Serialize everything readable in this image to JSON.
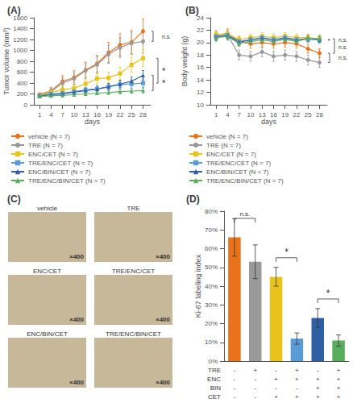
{
  "chart_data": [
    {
      "type": "line",
      "title": "(A)",
      "x_label": "days",
      "y_label": "Tumor volume (mm³)",
      "xlim": [
        -0.5,
        30
      ],
      "xticks": [
        1,
        4,
        7,
        10,
        13,
        16,
        19,
        22,
        25,
        28
      ],
      "ylim": [
        0,
        1600
      ],
      "yticks": [
        0,
        200,
        400,
        600,
        800,
        1000,
        1200,
        1400,
        1600
      ],
      "grid": false,
      "legend": "bottom",
      "x": [
        1,
        4,
        7,
        10,
        13,
        16,
        19,
        22,
        25,
        28
      ],
      "series": [
        {
          "name": "vehicle (N = 7)",
          "color": "#E8731A",
          "marker": "circle",
          "values": [
            190,
            255,
            430,
            500,
            640,
            755,
            960,
            1100,
            1150,
            1350
          ],
          "errors": [
            30,
            65,
            105,
            125,
            145,
            155,
            185,
            205,
            215,
            225
          ]
        },
        {
          "name": "TRE (N = 7)",
          "color": "#999999",
          "marker": "circle",
          "values": [
            178,
            245,
            400,
            480,
            625,
            735,
            930,
            1050,
            1130,
            1165
          ],
          "errors": [
            28,
            58,
            95,
            115,
            135,
            145,
            165,
            185,
            205,
            215
          ]
        },
        {
          "name": "ENC/CET (N = 7)",
          "color": "#E8C41A",
          "marker": "rect",
          "values": [
            175,
            225,
            275,
            305,
            385,
            480,
            495,
            575,
            735,
            855
          ],
          "errors": [
            28,
            48,
            65,
            75,
            85,
            95,
            100,
            115,
            135,
            155
          ]
        },
        {
          "name": "TRE/ENC/CET (N = 7)",
          "color": "#5B9BD5",
          "marker": "rect",
          "values": [
            165,
            198,
            212,
            242,
            272,
            292,
            332,
            372,
            382,
            398
          ],
          "errors": [
            22,
            32,
            38,
            45,
            48,
            55,
            58,
            68,
            75,
            80
          ]
        },
        {
          "name": "ENC/BIN/CET (N = 7)",
          "color": "#2E5FA3",
          "marker": "triangle",
          "values": [
            162,
            188,
            202,
            232,
            262,
            288,
            332,
            382,
            432,
            542
          ],
          "errors": [
            22,
            30,
            35,
            42,
            45,
            52,
            58,
            68,
            78,
            88
          ]
        },
        {
          "name": "TRE/ENC/BIN/CET (N = 7)",
          "color": "#5BAD5E",
          "marker": "triangle",
          "values": [
            155,
            165,
            175,
            185,
            200,
            215,
            225,
            242,
            252,
            262
          ],
          "errors": [
            18,
            22,
            25,
            28,
            30,
            32,
            35,
            38,
            42,
            45
          ]
        }
      ],
      "annotations": [
        {
          "text": "n.s.",
          "series": [
            "vehicle (N = 7)",
            "TRE (N = 7)"
          ]
        },
        {
          "text": "*",
          "series": [
            "ENC/CET (N = 7)",
            "TRE/ENC/CET (N = 7)"
          ]
        },
        {
          "text": "*",
          "series": [
            "ENC/BIN/CET (N = 7)",
            "TRE/ENC/BIN/CET (N = 7)"
          ]
        }
      ]
    },
    {
      "type": "line",
      "title": "(B)",
      "x_label": "days",
      "y_label": "Body weight (g)",
      "xlim": [
        -0.5,
        30
      ],
      "xticks": [
        1,
        4,
        7,
        10,
        13,
        16,
        19,
        22,
        25,
        28
      ],
      "ylim": [
        10,
        24
      ],
      "yticks": [
        10,
        12,
        14,
        16,
        18,
        20,
        22,
        24
      ],
      "grid": false,
      "legend": "bottom",
      "x": [
        1,
        4,
        7,
        10,
        13,
        16,
        19,
        22,
        25,
        28
      ],
      "series": [
        {
          "name": "vehicle (N = 7)",
          "color": "#E8731A",
          "marker": "circle",
          "values": [
            21.2,
            21.5,
            20.2,
            19.8,
            20.0,
            19.8,
            20.0,
            19.8,
            19.0,
            18.3
          ],
          "errors": [
            0.7,
            0.7,
            0.7,
            0.7,
            0.7,
            0.7,
            0.7,
            0.7,
            0.7,
            0.7
          ]
        },
        {
          "name": "TRE (N = 7)",
          "color": "#999999",
          "marker": "circle",
          "values": [
            21.0,
            21.2,
            18.0,
            17.8,
            18.5,
            17.8,
            18.0,
            17.8,
            17.2,
            16.8
          ],
          "errors": [
            0.8,
            0.8,
            0.8,
            0.8,
            0.8,
            0.8,
            0.8,
            0.8,
            0.8,
            0.8
          ]
        },
        {
          "name": "ENC/CET (N = 7)",
          "color": "#E8C41A",
          "marker": "rect",
          "values": [
            21.3,
            21.4,
            20.5,
            20.8,
            21.0,
            20.8,
            21.0,
            20.8,
            20.8,
            20.6
          ],
          "errors": [
            0.6,
            0.6,
            0.6,
            0.6,
            0.6,
            0.6,
            0.6,
            0.6,
            0.6,
            0.6
          ]
        },
        {
          "name": "TRE/ENC/CET (N = 7)",
          "color": "#5B9BD5",
          "marker": "rect",
          "values": [
            21.0,
            21.2,
            20.2,
            20.5,
            20.8,
            20.5,
            20.8,
            20.5,
            20.5,
            20.4
          ],
          "errors": [
            0.5,
            0.5,
            0.5,
            0.5,
            0.5,
            0.5,
            0.5,
            0.5,
            0.5,
            0.5
          ]
        },
        {
          "name": "ENC/BIN/CET (N = 7)",
          "color": "#2E5FA3",
          "marker": "triangle",
          "values": [
            20.9,
            21.1,
            20.1,
            20.4,
            20.7,
            20.4,
            20.7,
            20.4,
            20.7,
            20.5
          ],
          "errors": [
            0.5,
            0.5,
            0.5,
            0.5,
            0.5,
            0.5,
            0.5,
            0.5,
            0.5,
            0.5
          ]
        },
        {
          "name": "TRE/ENC/BIN/CET (N = 7)",
          "color": "#5BAD5E",
          "marker": "triangle",
          "values": [
            20.8,
            21.0,
            19.9,
            20.2,
            20.4,
            20.2,
            20.5,
            20.2,
            20.7,
            20.6
          ],
          "errors": [
            0.5,
            0.5,
            0.5,
            0.5,
            0.5,
            0.5,
            0.5,
            0.5,
            0.5,
            0.5
          ]
        }
      ],
      "annotations": [
        {
          "text": "n.s.",
          "series": [
            "TRE/ENC/CET (N = 7)",
            "ENC/BIN/CET (N = 7)"
          ]
        },
        {
          "text": "n.s.",
          "series": [
            "vehicle (N = 7)",
            "ENC/CET (N = 7)"
          ]
        },
        {
          "text": "n.s.",
          "series": [
            "vehicle (N = 7)",
            "TRE (N = 7)"
          ]
        }
      ]
    },
    {
      "type": "image_grid",
      "title": "(C)",
      "categories": [
        "vehicle",
        "TRE",
        "ENC/CET",
        "TRE/ENC/CET",
        "ENC/BIN/CET",
        "TRE/ENC/BIN/CET"
      ],
      "annotation": "×400",
      "color": "#c8b89a"
    },
    {
      "type": "bar",
      "title": "(D)",
      "y_label": "Ki-67 labeling index",
      "categories": [
        null,
        null,
        null,
        null,
        null,
        null
      ],
      "values": [
        66,
        53,
        45,
        12,
        23,
        11
      ],
      "errors": [
        10,
        9,
        5,
        3,
        5,
        3
      ],
      "colors": [
        "#E8731A",
        "#999999",
        "#E8C41A",
        "#5B9BD5",
        "#2E5FA3",
        "#5BAD5E"
      ],
      "ylim": [
        0,
        80
      ],
      "yticks": [
        {
          "value": 0,
          "label": "0%"
        },
        {
          "value": 10,
          "label": "10%"
        },
        {
          "value": 20,
          "label": "20%"
        },
        {
          "value": 30,
          "label": "30%"
        },
        {
          "value": 40,
          "label": "40%"
        },
        {
          "value": 50,
          "label": "50%"
        },
        {
          "value": 60,
          "label": "60%"
        },
        {
          "value": 70,
          "label": "70%"
        },
        {
          "value": 80,
          "label": "80%"
        }
      ],
      "grid": false,
      "annotations": [
        {
          "text": "n.s.",
          "bars": [
            0,
            1
          ],
          "y": 74
        },
        {
          "text": "*",
          "bars": [
            2,
            3
          ],
          "y": 53
        },
        {
          "text": "*",
          "bars": [
            4,
            5
          ],
          "y": 31
        }
      ],
      "sign_table": {
        "rows": [
          "TRE",
          "ENC",
          "BIN",
          "CET"
        ],
        "signs": [
          [
            "-",
            "+",
            "-",
            "+",
            "-",
            "+"
          ],
          [
            "-",
            "-",
            "+",
            "+",
            "+",
            "+"
          ],
          [
            "-",
            "-",
            "-",
            "-",
            "+",
            "+"
          ],
          [
            "-",
            "-",
            "+",
            "+",
            "+",
            "+"
          ]
        ]
      }
    }
  ]
}
